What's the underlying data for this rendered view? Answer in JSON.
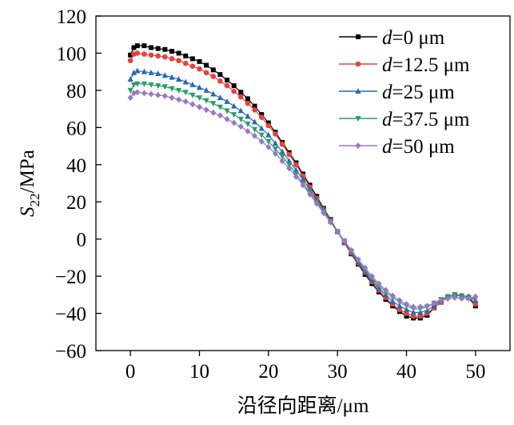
{
  "chart_data": {
    "type": "line",
    "title": "",
    "xlabel": "沿径向距离/μm",
    "ylabel": {
      "main": "S",
      "sub": "22",
      "unit": "/MPa"
    },
    "xlim": [
      -5,
      55
    ],
    "ylim": [
      -60,
      120
    ],
    "xticks": [
      0,
      10,
      20,
      30,
      40,
      50
    ],
    "xtick_labels": [
      "0",
      "10",
      "20",
      "30",
      "40",
      "50"
    ],
    "yticks": [
      -60,
      -40,
      -20,
      0,
      20,
      40,
      60,
      80,
      100,
      120
    ],
    "ytick_labels": [
      "−60",
      "−40",
      "−20",
      "0",
      "20",
      "40",
      "60",
      "80",
      "100",
      "120"
    ],
    "legend_position": "top-right",
    "x": [
      0,
      0.5,
      1,
      2,
      3,
      4,
      5,
      6,
      7,
      8,
      9,
      10,
      11,
      12,
      13,
      14,
      15,
      16,
      17,
      18,
      19,
      20,
      21,
      22,
      23,
      24,
      25,
      26,
      27,
      28,
      29,
      30,
      31,
      32,
      33,
      34,
      35,
      36,
      37,
      38,
      39,
      40,
      41,
      42,
      43,
      44,
      45,
      46,
      47,
      48,
      49,
      50
    ],
    "series": [
      {
        "name": "d=0 μm",
        "d_label": "d",
        "value_label": "=0 μm",
        "color": "#000000",
        "marker": "square",
        "values": [
          99,
          103,
          104,
          104,
          103,
          102.5,
          102,
          101,
          100,
          98.5,
          97,
          95.5,
          93.5,
          91,
          88.5,
          85.5,
          82.5,
          79,
          75.5,
          71.5,
          67,
          62.5,
          57.5,
          52,
          46.5,
          41,
          35,
          29,
          23,
          16.5,
          10.5,
          4,
          -2,
          -8,
          -13.5,
          -19,
          -24,
          -28.5,
          -32.5,
          -36,
          -39,
          -41.5,
          -42.5,
          -42.5,
          -41,
          -37,
          -34,
          -31,
          -30,
          -30.5,
          -31.5,
          -36
        ]
      },
      {
        "name": "d=12.5 μm",
        "d_label": "d",
        "value_label": "=12.5 μm",
        "color": "#e8413c",
        "marker": "circle",
        "values": [
          96,
          99.5,
          100,
          99.5,
          99,
          98.5,
          98,
          97,
          96,
          94.5,
          93,
          91.5,
          89.5,
          87.5,
          85,
          82.5,
          79.5,
          76.5,
          73,
          69.5,
          65.5,
          61,
          56.5,
          51,
          45.5,
          40,
          34,
          28,
          22,
          16,
          10,
          4,
          -2,
          -7.5,
          -13,
          -18,
          -23,
          -27.5,
          -31.5,
          -35,
          -38,
          -40,
          -41.5,
          -41.5,
          -40,
          -37,
          -34,
          -31,
          -30,
          -30.5,
          -31,
          -35
        ]
      },
      {
        "name": "d=25 μm",
        "d_label": "d",
        "value_label": "=25 μm",
        "color": "#2b67b4",
        "marker": "triangle",
        "values": [
          86,
          89.5,
          90.5,
          90,
          89.5,
          89,
          88,
          87,
          86,
          84.5,
          83,
          81.5,
          80,
          78,
          76,
          74,
          71.5,
          69,
          66,
          63,
          59.5,
          56,
          51.5,
          47,
          42,
          37,
          32,
          26.5,
          21,
          15.5,
          9.5,
          4,
          -1.5,
          -7,
          -12.5,
          -17.5,
          -22,
          -26.5,
          -30,
          -33.5,
          -36,
          -38,
          -39.5,
          -39.5,
          -38.5,
          -36,
          -33,
          -31,
          -30,
          -30.5,
          -31,
          -33
        ]
      },
      {
        "name": "d=37.5 μm",
        "d_label": "d",
        "value_label": "=37.5 μm",
        "color": "#2a9e6a",
        "marker": "triangle-down",
        "values": [
          80,
          83,
          83.5,
          83.5,
          83,
          82.5,
          82,
          81,
          80,
          79,
          77.5,
          76,
          74.5,
          73,
          71,
          69,
          67,
          64.5,
          62,
          59,
          56,
          52.5,
          48.5,
          44.5,
          40,
          35,
          30,
          25,
          20,
          15,
          9.5,
          4,
          -1,
          -6.5,
          -11.5,
          -16.5,
          -21,
          -25,
          -28.5,
          -31.5,
          -34,
          -36,
          -37.5,
          -37.5,
          -36.5,
          -34.5,
          -32.5,
          -31,
          -30.5,
          -30.5,
          -31.5,
          -32
        ]
      },
      {
        "name": "d=50 μm",
        "d_label": "d",
        "value_label": "=50 μm",
        "color": "#9877c3",
        "marker": "diamond",
        "values": [
          76,
          78.5,
          79,
          78.5,
          78,
          77.5,
          77,
          76,
          75,
          74,
          72.5,
          71,
          69.5,
          68,
          66.5,
          64.5,
          62.5,
          60.5,
          58,
          55.5,
          52.5,
          49.5,
          46,
          42,
          38,
          33.5,
          29,
          24,
          19,
          14,
          9,
          4,
          -1,
          -6,
          -11,
          -15.5,
          -20,
          -24,
          -27.5,
          -30.5,
          -33,
          -35,
          -36.5,
          -36.5,
          -36,
          -34.5,
          -33,
          -32,
          -31.5,
          -32,
          -32,
          -31
        ]
      }
    ]
  }
}
